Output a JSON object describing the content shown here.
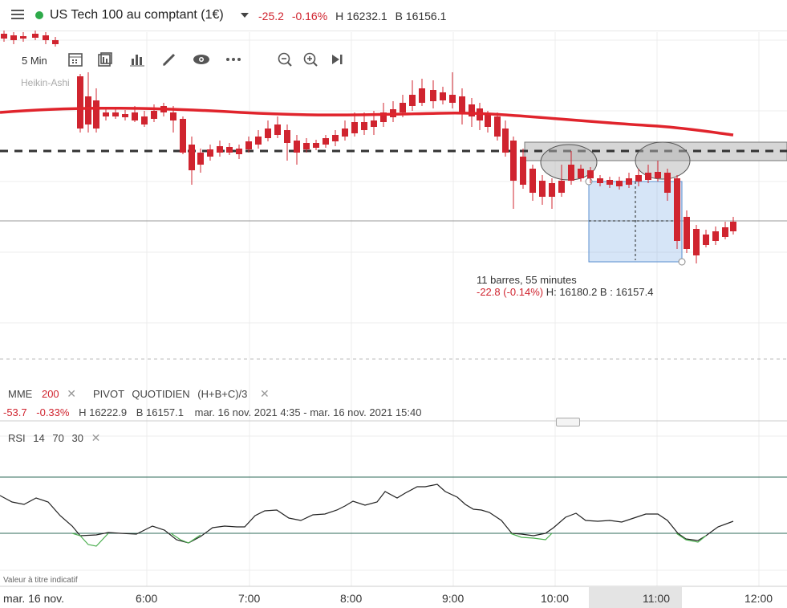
{
  "header": {
    "instrument": "US Tech 100 au comptant (1€)",
    "change": "-25.2",
    "change_pct": "-0.16%",
    "high": "H 16232.1",
    "low": "B 16156.1",
    "status_color": "#2eaa4a"
  },
  "toolbar": {
    "timeframe": "5 Min",
    "chart_style": "Heikin-Ashi",
    "icons": [
      "calendar-icon",
      "layout-icon",
      "bar-chart-icon",
      "pencil-icon",
      "eye-icon",
      "more-icon",
      "zoom-out-icon",
      "zoom-in-icon",
      "skip-to-end-icon"
    ]
  },
  "measure": {
    "line1": "11 barres, 55 minutes",
    "change": "-22.8 (-0.14%)",
    "range": "H: 16180.2 B : 16157.4"
  },
  "indicators": {
    "mme_label": "MME",
    "mme_value": "200",
    "pivot_label": "PIVOT",
    "pivot_period": "QUOTIDIEN",
    "pivot_formula": "(H+B+C)/3",
    "rsi_label": "RSI",
    "rsi_params": [
      "14",
      "70",
      "30"
    ]
  },
  "stats": {
    "change": "-53.7",
    "change_pct": "-0.33%",
    "high": "H 16222.9",
    "low": "B 16157.1",
    "period": "mar. 16 nov. 2021 4:35 - mar. 16 nov. 2021 15:40"
  },
  "disclaimer": "Valeur à titre indicatif",
  "xaxis": {
    "date": "mar. 16 nov.",
    "ticks": [
      "6:00",
      "7:00",
      "8:00",
      "9:00",
      "10:00",
      "11:00",
      "12:00"
    ]
  },
  "colors": {
    "up": "#2eaa4a",
    "down": "#d0242f",
    "ema": "#e0242c",
    "rsi": "#222222",
    "rsi_low": "#4caf50"
  }
}
